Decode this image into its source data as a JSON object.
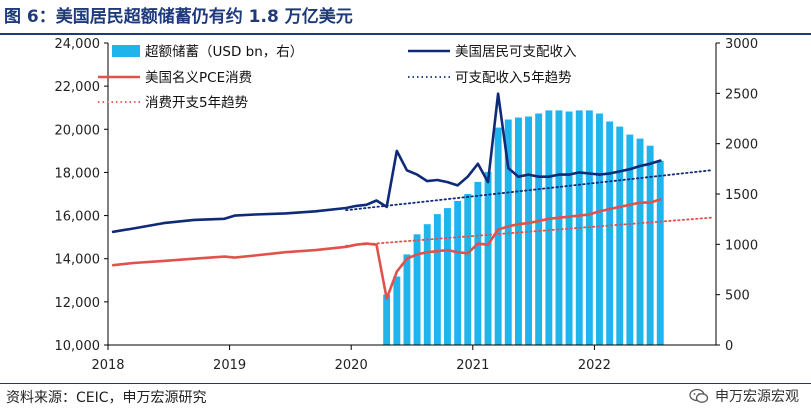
{
  "header": {
    "title": "图 6：美国居民超额储蓄仍有约 1.8 万亿美元"
  },
  "footer": {
    "source": "资料来源：CEIC，申万宏源研究",
    "watermark": "申万宏源宏观"
  },
  "icons": {
    "watermark": "wechat-icon"
  },
  "colors": {
    "title": "#1f3a7a",
    "bar": "#1fb4ec",
    "income": "#0f2a78",
    "pce": "#e0524b"
  },
  "chart_data": {
    "type": "bar+line",
    "title": "",
    "x_tick_labels": [
      "2018",
      "2019",
      "2020",
      "2021",
      "2022"
    ],
    "x_tick_positions": [
      "2018-01",
      "2019-01",
      "2020-01",
      "2021-01",
      "2022-01"
    ],
    "x_range": [
      "2018-01",
      "2022-12"
    ],
    "y_left": {
      "range": [
        10000,
        24000
      ],
      "ticks": [
        10000,
        12000,
        14000,
        16000,
        18000,
        20000,
        22000,
        24000
      ],
      "tick_labels": [
        "10,000",
        "12,000",
        "14,000",
        "16,000",
        "18,000",
        "20,000",
        "22,000",
        "24,000"
      ]
    },
    "y_right": {
      "range": [
        0,
        3000
      ],
      "ticks": [
        0,
        500,
        1000,
        1500,
        2000,
        2500,
        3000
      ],
      "tick_labels": [
        "0",
        "500",
        "1000",
        "1500",
        "2000",
        "2500",
        "3000"
      ]
    },
    "legend": [
      {
        "key": "savings",
        "label": "超额储蓄（USD bn，右）",
        "style": "bar",
        "color": "#1fb4ec"
      },
      {
        "key": "income",
        "label": "美国居民可支配收入",
        "style": "line",
        "color": "#0f2a78"
      },
      {
        "key": "pce",
        "label": "美国名义PCE消费",
        "style": "line",
        "color": "#e0524b"
      },
      {
        "key": "income_trend",
        "label": "可支配收入5年趋势",
        "style": "dotted",
        "color": "#0f2a78"
      },
      {
        "key": "pce_trend",
        "label": "消费开支5年趋势",
        "style": "dotted",
        "color": "#e0524b"
      }
    ],
    "legend_placement": "top",
    "grid": false,
    "series": {
      "savings": {
        "axis": "right",
        "x": [
          "2020-04",
          "2020-05",
          "2020-06",
          "2020-07",
          "2020-08",
          "2020-09",
          "2020-10",
          "2020-11",
          "2020-12",
          "2021-01",
          "2021-02",
          "2021-03",
          "2021-04",
          "2021-05",
          "2021-06",
          "2021-07",
          "2021-08",
          "2021-09",
          "2021-10",
          "2021-11",
          "2021-12",
          "2022-01",
          "2022-02",
          "2022-03",
          "2022-04",
          "2022-05",
          "2022-06",
          "2022-07"
        ],
        "values": [
          500,
          680,
          900,
          1100,
          1200,
          1300,
          1360,
          1430,
          1500,
          1620,
          1720,
          2160,
          2240,
          2260,
          2270,
          2300,
          2330,
          2330,
          2320,
          2330,
          2330,
          2300,
          2220,
          2170,
          2090,
          2050,
          1980,
          1830
        ]
      },
      "income": {
        "axis": "left",
        "x": [
          "2018-01",
          "2018-03",
          "2018-06",
          "2018-09",
          "2018-12",
          "2019-01",
          "2019-03",
          "2019-06",
          "2019-09",
          "2019-12",
          "2020-01",
          "2020-02",
          "2020-03",
          "2020-04",
          "2020-05",
          "2020-06",
          "2020-07",
          "2020-08",
          "2020-09",
          "2020-10",
          "2020-11",
          "2020-12",
          "2021-01",
          "2021-02",
          "2021-03",
          "2021-04",
          "2021-05",
          "2021-06",
          "2021-07",
          "2021-08",
          "2021-09",
          "2021-10",
          "2021-11",
          "2021-12",
          "2022-01",
          "2022-02",
          "2022-03",
          "2022-04",
          "2022-05",
          "2022-06",
          "2022-07"
        ],
        "values": [
          15250,
          15400,
          15650,
          15800,
          15850,
          16000,
          16050,
          16100,
          16200,
          16350,
          16450,
          16500,
          16700,
          16400,
          19000,
          18100,
          17900,
          17600,
          17650,
          17550,
          17400,
          17800,
          18400,
          17550,
          21650,
          18200,
          17800,
          17900,
          17800,
          17800,
          17900,
          17900,
          18000,
          17950,
          17900,
          17950,
          18050,
          18150,
          18300,
          18400,
          18550
        ]
      },
      "pce": {
        "axis": "left",
        "x": [
          "2018-01",
          "2018-03",
          "2018-06",
          "2018-09",
          "2018-12",
          "2019-01",
          "2019-03",
          "2019-06",
          "2019-09",
          "2019-12",
          "2020-01",
          "2020-02",
          "2020-03",
          "2020-04",
          "2020-05",
          "2020-06",
          "2020-07",
          "2020-08",
          "2020-09",
          "2020-10",
          "2020-11",
          "2020-12",
          "2021-01",
          "2021-02",
          "2021-03",
          "2021-04",
          "2021-05",
          "2021-06",
          "2021-07",
          "2021-08",
          "2021-09",
          "2021-10",
          "2021-11",
          "2021-12",
          "2022-01",
          "2022-02",
          "2022-03",
          "2022-04",
          "2022-05",
          "2022-06",
          "2022-07"
        ],
        "values": [
          13700,
          13800,
          13900,
          14000,
          14100,
          14050,
          14150,
          14300,
          14400,
          14550,
          14650,
          14700,
          14650,
          12150,
          13400,
          14000,
          14200,
          14300,
          14350,
          14400,
          14300,
          14250,
          14700,
          14650,
          15350,
          15500,
          15600,
          15650,
          15750,
          15850,
          15900,
          15950,
          16000,
          16050,
          16200,
          16300,
          16400,
          16500,
          16600,
          16600,
          16750
        ]
      },
      "income_trend": {
        "axis": "left",
        "style": "dotted",
        "x": [
          "2019-12",
          "2022-12"
        ],
        "values": [
          16250,
          18100
        ]
      },
      "pce_trend": {
        "axis": "left",
        "style": "dotted",
        "x": [
          "2019-12",
          "2022-12"
        ],
        "values": [
          14600,
          15900
        ]
      }
    }
  }
}
